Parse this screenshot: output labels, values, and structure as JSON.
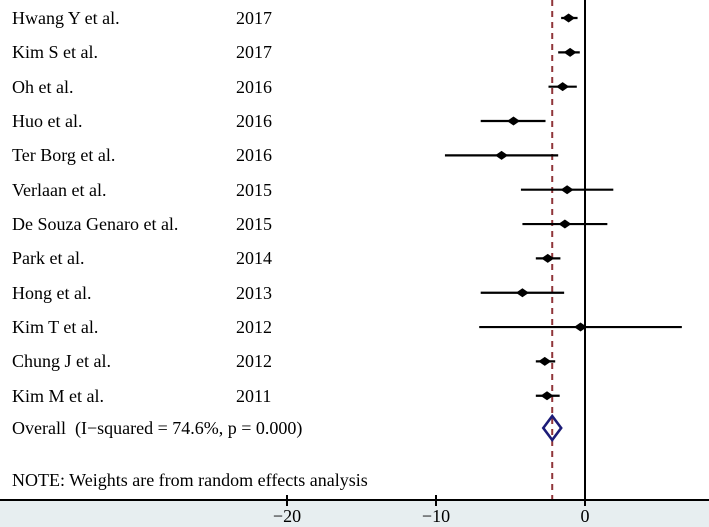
{
  "chart_data": {
    "type": "forest",
    "title": "",
    "note": "NOTE: Weights are from random effects analysis",
    "studies": [
      {
        "name": "Hwang Y et al.",
        "year": "2017",
        "effect": -1.1,
        "ci_low": -1.6,
        "ci_high": -0.5
      },
      {
        "name": "Kim S et al.",
        "year": "2017",
        "effect": -1.0,
        "ci_low": -1.8,
        "ci_high": -0.35
      },
      {
        "name": "Oh et al.",
        "year": "2016",
        "effect": -1.5,
        "ci_low": -2.45,
        "ci_high": -0.55
      },
      {
        "name": "Huo et al.",
        "year": "2016",
        "effect": -4.8,
        "ci_low": -7.0,
        "ci_high": -2.65
      },
      {
        "name": "Ter Borg et al.",
        "year": "2016",
        "effect": -5.6,
        "ci_low": -9.4,
        "ci_high": -1.8
      },
      {
        "name": "Verlaan et al.",
        "year": "2015",
        "effect": -1.2,
        "ci_low": -4.3,
        "ci_high": 1.9
      },
      {
        "name": "De Souza Genaro et al.",
        "year": "2015",
        "effect": -1.35,
        "ci_low": -4.2,
        "ci_high": 1.5
      },
      {
        "name": "Park et al.",
        "year": "2014",
        "effect": -2.5,
        "ci_low": -3.3,
        "ci_high": -1.65
      },
      {
        "name": "Hong et al.",
        "year": "2013",
        "effect": -4.2,
        "ci_low": -7.0,
        "ci_high": -1.4
      },
      {
        "name": "Kim T et al.",
        "year": "2012",
        "effect": -0.3,
        "ci_low": -7.1,
        "ci_high": 6.5
      },
      {
        "name": "Chung J et al.",
        "year": "2012",
        "effect": -2.7,
        "ci_low": -3.3,
        "ci_high": -2.0
      },
      {
        "name": "Kim M et al.",
        "year": "2011",
        "effect": -2.55,
        "ci_low": -3.3,
        "ci_high": -1.7
      }
    ],
    "overall": {
      "label": "Overall  (I−squared = 74.6%, p = 0.000)",
      "effect": -2.2,
      "ci_low": -2.8,
      "ci_high": -1.6
    },
    "x_axis": {
      "ticks": [
        -20,
        -10,
        0
      ],
      "tick_labels": [
        "−20",
        "−10",
        "0"
      ],
      "xlim": [
        -39.3,
        8.3
      ]
    },
    "reference_lines": {
      "zero_line_x": 0,
      "pooled_dashed_line_x": -2.2
    },
    "colors": {
      "marker": "#000000",
      "ci_line": "#000000",
      "overall_diamond_outline": "#1c1c78",
      "pooled_dashed_line": "#903539",
      "axis_strip_background": "#e7eef0",
      "axis_line": "#000000",
      "background": "#ffffff"
    }
  }
}
